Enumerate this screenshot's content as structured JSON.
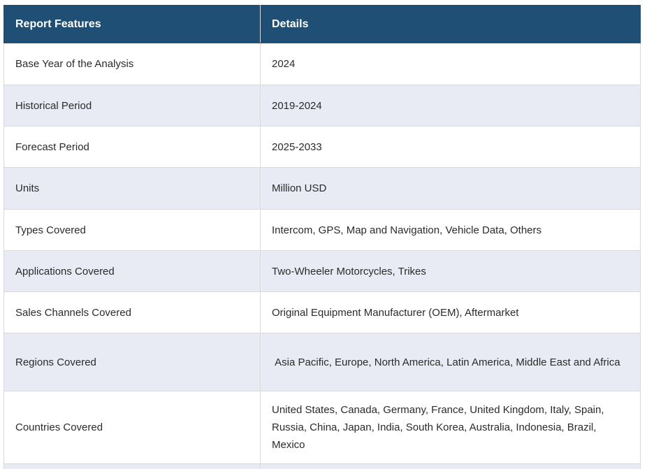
{
  "table": {
    "headers": {
      "feature": "Report Features",
      "detail": "Details"
    },
    "rows": [
      {
        "feature": "Base Year of the Analysis",
        "detail": "2024"
      },
      {
        "feature": "Historical Period",
        "detail": "2019-2024"
      },
      {
        "feature": "Forecast Period",
        "detail": "2025-2033"
      },
      {
        "feature": "Units",
        "detail": "Million USD"
      },
      {
        "feature": "Types Covered",
        "detail": "Intercom, GPS, Map and Navigation, Vehicle Data, Others"
      },
      {
        "feature": "Applications Covered",
        "detail": "Two-Wheeler Motorcycles, Trikes"
      },
      {
        "feature": "Sales Channels Covered",
        "detail": "Original Equipment Manufacturer (OEM), Aftermarket"
      },
      {
        "feature": "Regions Covered",
        "detail": " Asia Pacific, Europe, North America, Latin America, Middle East and Africa"
      },
      {
        "feature": "Countries Covered",
        "detail": "United States, Canada, Germany, France, United Kingdom, Italy, Spain, Russia, China, Japan, India, South Korea, Australia, Indonesia, Brazil, Mexico"
      },
      {
        "feature": "",
        "detail": ""
      }
    ]
  },
  "colors": {
    "header_bg": "#1f4f74",
    "header_text": "#ffffff",
    "row_bg": "#ffffff",
    "row_alt_bg": "#e8eaf4",
    "border": "#d9d9d9",
    "text": "#2b2b2b"
  }
}
